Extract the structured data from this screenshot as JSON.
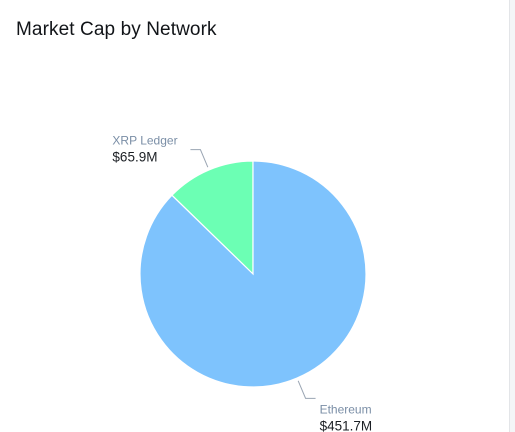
{
  "card": {
    "title": "Market Cap by Network"
  },
  "chart_data": {
    "type": "pie",
    "title": "Market Cap by Network",
    "start_angle_deg": 0,
    "direction": "counterclockwise",
    "slices": [
      {
        "label": "XRP Ledger",
        "value": 65.9,
        "value_label": "$65.9M",
        "color": "#6cffb4",
        "label_color": "#7a8ea6"
      },
      {
        "label": "Ethereum",
        "value": 451.7,
        "value_label": "$451.7M",
        "color": "#7ec3fd",
        "label_color": "#7a8ea6"
      }
    ],
    "label_leader_color": "#9aa5b3"
  }
}
